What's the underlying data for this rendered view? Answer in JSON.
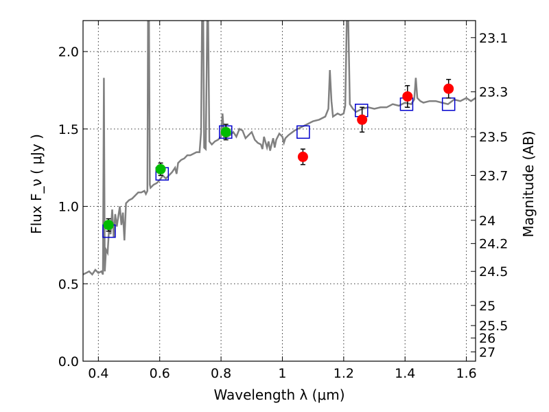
{
  "chart_data": {
    "type": "line",
    "xlabel": "Wavelength  λ (μm)",
    "ylabel": "Flux  F_ν  ( μJy )",
    "ylabel_right": "Magnitude (AB)",
    "xlim": [
      0.35,
      1.63
    ],
    "ylim": [
      0.0,
      2.2
    ],
    "grid": true,
    "x_ticks": [
      0.4,
      0.6,
      0.8,
      1.0,
      1.2,
      1.4,
      1.6
    ],
    "x_tick_labels": [
      "0.4",
      "0.6",
      "0.8",
      "1",
      "1.2",
      "1.4",
      "1.6"
    ],
    "y_ticks": [
      0.0,
      0.5,
      1.0,
      1.5,
      2.0
    ],
    "y_tick_labels": [
      "0.0",
      "0.5",
      "1.0",
      "1.5",
      "2.0"
    ],
    "right_ticks": [
      {
        "flux": 2.09,
        "label": "23.1"
      },
      {
        "flux": 1.74,
        "label": "23.3"
      },
      {
        "flux": 1.45,
        "label": "23.5"
      },
      {
        "flux": 1.2,
        "label": "23.7"
      },
      {
        "flux": 0.91,
        "label": "24"
      },
      {
        "flux": 0.76,
        "label": "24.2"
      },
      {
        "flux": 0.58,
        "label": "24.5"
      },
      {
        "flux": 0.36,
        "label": "25"
      },
      {
        "flux": 0.23,
        "label": "25.5"
      },
      {
        "flux": 0.15,
        "label": "26"
      },
      {
        "flux": 0.06,
        "label": "27"
      }
    ],
    "series": [
      {
        "kind": "spectrum",
        "color": "#808080",
        "points": [
          [
            0.35,
            0.56
          ],
          [
            0.36,
            0.57
          ],
          [
            0.37,
            0.58
          ],
          [
            0.38,
            0.56
          ],
          [
            0.39,
            0.59
          ],
          [
            0.4,
            0.57
          ],
          [
            0.41,
            0.58
          ],
          [
            0.415,
            0.56
          ],
          [
            0.418,
            1.83
          ],
          [
            0.421,
            0.58
          ],
          [
            0.425,
            0.72
          ],
          [
            0.43,
            0.7
          ],
          [
            0.435,
            0.86
          ],
          [
            0.44,
            0.82
          ],
          [
            0.445,
            0.98
          ],
          [
            0.45,
            0.8
          ],
          [
            0.455,
            0.95
          ],
          [
            0.46,
            0.87
          ],
          [
            0.47,
            1.0
          ],
          [
            0.475,
            0.88
          ],
          [
            0.48,
            0.96
          ],
          [
            0.485,
            0.78
          ],
          [
            0.49,
            1.02
          ],
          [
            0.5,
            1.04
          ],
          [
            0.51,
            1.05
          ],
          [
            0.52,
            1.07
          ],
          [
            0.53,
            1.09
          ],
          [
            0.54,
            1.09
          ],
          [
            0.55,
            1.1
          ],
          [
            0.555,
            1.08
          ],
          [
            0.56,
            1.1
          ],
          [
            0.562,
            2.2
          ],
          [
            0.565,
            2.2
          ],
          [
            0.568,
            1.14
          ],
          [
            0.57,
            1.12
          ],
          [
            0.58,
            1.14
          ],
          [
            0.59,
            1.15
          ],
          [
            0.6,
            1.17
          ],
          [
            0.61,
            1.2
          ],
          [
            0.62,
            1.18
          ],
          [
            0.63,
            1.2
          ],
          [
            0.64,
            1.22
          ],
          [
            0.65,
            1.25
          ],
          [
            0.655,
            1.21
          ],
          [
            0.66,
            1.28
          ],
          [
            0.67,
            1.3
          ],
          [
            0.68,
            1.31
          ],
          [
            0.69,
            1.33
          ],
          [
            0.7,
            1.33
          ],
          [
            0.71,
            1.34
          ],
          [
            0.72,
            1.35
          ],
          [
            0.73,
            1.35
          ],
          [
            0.735,
            1.48
          ],
          [
            0.738,
            2.2
          ],
          [
            0.742,
            2.2
          ],
          [
            0.745,
            1.38
          ],
          [
            0.75,
            1.37
          ],
          [
            0.755,
            2.2
          ],
          [
            0.758,
            2.2
          ],
          [
            0.762,
            1.42
          ],
          [
            0.77,
            1.4
          ],
          [
            0.78,
            1.42
          ],
          [
            0.79,
            1.43
          ],
          [
            0.8,
            1.45
          ],
          [
            0.805,
            1.6
          ],
          [
            0.81,
            1.44
          ],
          [
            0.82,
            1.45
          ],
          [
            0.83,
            1.46
          ],
          [
            0.84,
            1.48
          ],
          [
            0.85,
            1.45
          ],
          [
            0.86,
            1.5
          ],
          [
            0.87,
            1.49
          ],
          [
            0.88,
            1.44
          ],
          [
            0.89,
            1.46
          ],
          [
            0.9,
            1.48
          ],
          [
            0.91,
            1.43
          ],
          [
            0.92,
            1.41
          ],
          [
            0.93,
            1.4
          ],
          [
            0.935,
            1.37
          ],
          [
            0.94,
            1.45
          ],
          [
            0.95,
            1.38
          ],
          [
            0.955,
            1.42
          ],
          [
            0.96,
            1.36
          ],
          [
            0.965,
            1.4
          ],
          [
            0.97,
            1.44
          ],
          [
            0.975,
            1.38
          ],
          [
            0.98,
            1.43
          ],
          [
            0.99,
            1.47
          ],
          [
            1.0,
            1.45
          ],
          [
            1.005,
            1.41
          ],
          [
            1.01,
            1.44
          ],
          [
            1.02,
            1.46
          ],
          [
            1.04,
            1.49
          ],
          [
            1.06,
            1.51
          ],
          [
            1.08,
            1.53
          ],
          [
            1.1,
            1.55
          ],
          [
            1.12,
            1.56
          ],
          [
            1.14,
            1.58
          ],
          [
            1.15,
            1.63
          ],
          [
            1.155,
            1.88
          ],
          [
            1.16,
            1.68
          ],
          [
            1.165,
            1.58
          ],
          [
            1.18,
            1.6
          ],
          [
            1.19,
            1.59
          ],
          [
            1.2,
            1.6
          ],
          [
            1.205,
            1.65
          ],
          [
            1.21,
            2.2
          ],
          [
            1.215,
            2.2
          ],
          [
            1.22,
            1.66
          ],
          [
            1.23,
            1.63
          ],
          [
            1.24,
            1.61
          ],
          [
            1.25,
            1.62
          ],
          [
            1.26,
            1.63
          ],
          [
            1.28,
            1.64
          ],
          [
            1.3,
            1.63
          ],
          [
            1.32,
            1.64
          ],
          [
            1.34,
            1.64
          ],
          [
            1.36,
            1.66
          ],
          [
            1.38,
            1.65
          ],
          [
            1.4,
            1.67
          ],
          [
            1.42,
            1.66
          ],
          [
            1.43,
            1.69
          ],
          [
            1.435,
            1.83
          ],
          [
            1.44,
            1.7
          ],
          [
            1.45,
            1.68
          ],
          [
            1.46,
            1.67
          ],
          [
            1.48,
            1.68
          ],
          [
            1.5,
            1.68
          ],
          [
            1.52,
            1.67
          ],
          [
            1.54,
            1.66
          ],
          [
            1.56,
            1.69
          ],
          [
            1.58,
            1.68
          ],
          [
            1.6,
            1.7
          ],
          [
            1.615,
            1.68
          ],
          [
            1.63,
            1.7
          ]
        ]
      },
      {
        "kind": "model_squares",
        "color": "#0000cc",
        "points": [
          [
            0.435,
            0.84
          ],
          [
            0.608,
            1.21
          ],
          [
            0.815,
            1.48
          ],
          [
            1.068,
            1.48
          ],
          [
            1.258,
            1.62
          ],
          [
            1.405,
            1.66
          ],
          [
            1.542,
            1.66
          ]
        ]
      },
      {
        "kind": "observed_green",
        "color": "#00bb00",
        "points": [
          {
            "x": 0.433,
            "y": 0.88,
            "err": 0.04
          },
          {
            "x": 0.603,
            "y": 1.24,
            "err": 0.04
          },
          {
            "x": 0.816,
            "y": 1.48,
            "err": 0.05
          }
        ]
      },
      {
        "kind": "observed_red",
        "color": "#ff0000",
        "points": [
          {
            "x": 1.067,
            "y": 1.32,
            "err": 0.05
          },
          {
            "x": 1.26,
            "y": 1.56,
            "err": 0.08
          },
          {
            "x": 1.408,
            "y": 1.71,
            "err": 0.07
          },
          {
            "x": 1.542,
            "y": 1.76,
            "err": 0.06
          }
        ]
      }
    ]
  }
}
